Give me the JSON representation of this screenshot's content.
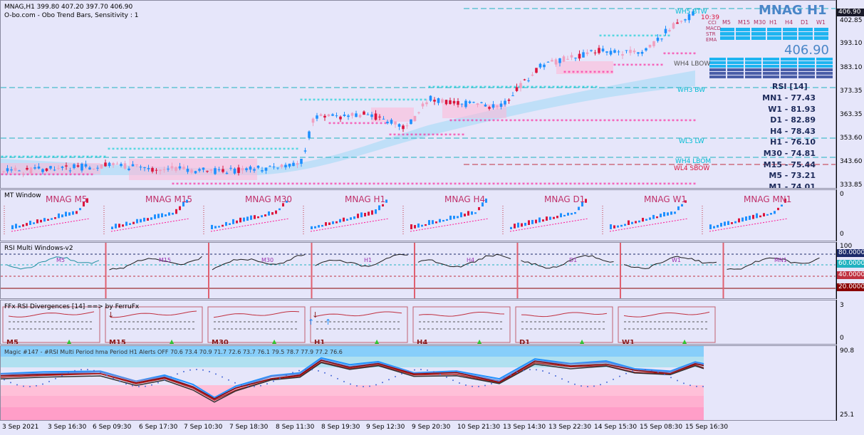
{
  "header": {
    "symbol_line": "MNAG,H1  399.80 407.20 397.70 406.90",
    "indicator_line": "O-bo.com - Obo Trend Bars, Sensitivity : 1"
  },
  "main_chart": {
    "big_title": "MNAG   H1",
    "price_big": "406.90",
    "countdown": "10:39",
    "tf_labels": [
      "M5",
      "M15",
      "M30",
      "H1",
      "H4",
      "D1",
      "W1"
    ],
    "row_labels": [
      "CCI",
      "MACD",
      "STR",
      "EMA"
    ],
    "level_labels": {
      "wh5": "WH5  BTW",
      "wh4": "WH4 LBOW",
      "wh3": "WH3  BW",
      "wl3": "WL3 LW",
      "wh4lbom": "WH4 LBOM",
      "wl4": "WL4 SBOW"
    },
    "rsi": {
      "title": "RSI [14]",
      "rows": [
        {
          "tf": "MN1",
          "value": "77.43"
        },
        {
          "tf": "W1",
          "value": "81.93"
        },
        {
          "tf": "D1",
          "value": "82.89"
        },
        {
          "tf": "H4",
          "value": "78.43"
        },
        {
          "tf": "H1",
          "value": "76.10"
        },
        {
          "tf": "M30",
          "value": "74.81"
        },
        {
          "tf": "M15",
          "value": "75.44"
        },
        {
          "tf": "M5",
          "value": "73.21"
        },
        {
          "tf": "M1",
          "value": "74.01"
        }
      ]
    }
  },
  "price_axis": {
    "ticks": [
      "402.85",
      "393.10",
      "383.10",
      "373.35",
      "363.35",
      "353.60",
      "343.60",
      "333.85"
    ],
    "current": "406.90"
  },
  "mt_window": {
    "title": "MT Window",
    "labels": [
      "MNAG M5",
      "MNAG M15",
      "MNAG M30",
      "MNAG H1",
      "MNAG H4",
      "MNAG D1",
      "MNAG W1",
      "MNAG MN1"
    ],
    "axis_top": "0",
    "axis_bottom": "0"
  },
  "rsi_multi": {
    "title": "RSI Multi Windows-v2",
    "labels": [
      "M5",
      "M15",
      "M30",
      "H1",
      "H4",
      "D1",
      "W1",
      "MN1"
    ],
    "levels": [
      "100",
      "80.0000",
      "60.0000",
      "40.0000",
      "20.0000"
    ]
  },
  "divergence": {
    "title": "FFx RSI Divergences [14] ==> by FerruFx",
    "labels": [
      "M5",
      "M15",
      "M30",
      "H1",
      "H4",
      "D1",
      "W1"
    ],
    "axis_top": "3",
    "axis_bottom": "0"
  },
  "magic": {
    "title": "Magic #147 - #RSI Multi Period hma  Period H1  Alerts OFF 70.6 73.4 70.9 71.7 72.6 73.7 76.1 79.5 78.7 77.9 77.2 76.6",
    "axis_top": "90.8",
    "axis_bottom": "25.1"
  },
  "time_axis": [
    "3 Sep 2021",
    "3 Sep 16:30",
    "6 Sep 09:30",
    "6 Sep 17:30",
    "7 Sep 10:30",
    "7 Sep 18:30",
    "8 Sep 11:30",
    "8 Sep 19:30",
    "9 Sep 12:30",
    "9 Sep 20:30",
    "10 Sep 21:30",
    "13 Sep 14:30",
    "13 Sep 22:30",
    "14 Sep 15:30",
    "15 Sep 08:30",
    "15 Sep 16:30"
  ],
  "colors": {
    "background": "#e6e6fa",
    "bull": "#1e90ff",
    "bear": "#dc143c",
    "cyan_stars": "#00ced1",
    "pink_stars": "#ff1493",
    "band": "#9fd8f5",
    "title_blue": "#4a86c8"
  }
}
